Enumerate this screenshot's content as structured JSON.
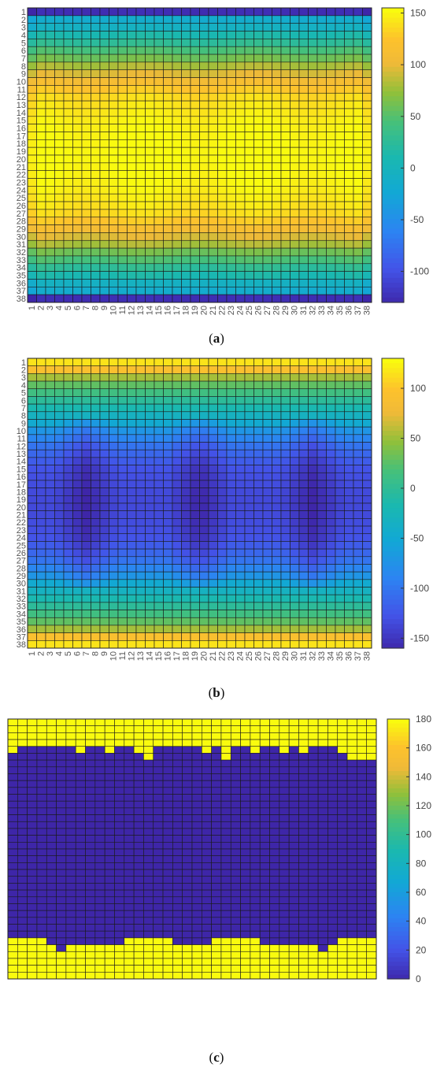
{
  "chart_data": [
    {
      "type": "heatmap",
      "panel_label": "a",
      "rows": 38,
      "cols": 38,
      "show_x_ticks": true,
      "show_y_ticks": true,
      "colorbar": {
        "ticks": [
          150,
          100,
          50,
          0,
          -50,
          -100
        ],
        "range": [
          -130,
          155
        ]
      },
      "profile": {
        "edge": [
          -125,
          -15,
          -5,
          10,
          25,
          45,
          60,
          80,
          95,
          110,
          125,
          135,
          140,
          143,
          146,
          148,
          150,
          151,
          152
        ],
        "center_boost": 8
      }
    },
    {
      "type": "heatmap",
      "panel_label": "b",
      "rows": 38,
      "cols": 38,
      "show_x_ticks": true,
      "show_y_ticks": true,
      "colorbar": {
        "ticks": [
          100,
          50,
          0,
          -50,
          -100,
          -150
        ],
        "range": [
          -160,
          130
        ]
      },
      "profile": {
        "edge": [
          118,
          95,
          55,
          30,
          15,
          0,
          -15,
          -30,
          -45,
          -70,
          -85,
          -100,
          -110,
          -118,
          -125,
          -128,
          -130,
          -132,
          -133
        ],
        "dip": -28
      }
    },
    {
      "type": "heatmap",
      "panel_label": "c",
      "rows": 38,
      "cols": 38,
      "show_x_ticks": false,
      "show_y_ticks": false,
      "colorbar": {
        "ticks": [
          180,
          160,
          140,
          120,
          100,
          80,
          60,
          40,
          20,
          0
        ],
        "range": [
          0,
          180
        ]
      },
      "values": {
        "high": 180,
        "low": 0
      },
      "top_band_rows": [
        5,
        4,
        4,
        4,
        4,
        4,
        4,
        5,
        4,
        4,
        5,
        4,
        4,
        5,
        6,
        4,
        4,
        4,
        4,
        4,
        5,
        4,
        6,
        4,
        4,
        5,
        4,
        4,
        5,
        4,
        5,
        4,
        4,
        4,
        5,
        6,
        6,
        6
      ],
      "bottom_band_rows": [
        6,
        6,
        6,
        6,
        5,
        4,
        5,
        5,
        5,
        5,
        5,
        5,
        6,
        6,
        6,
        6,
        6,
        5,
        5,
        5,
        5,
        6,
        6,
        6,
        6,
        6,
        5,
        5,
        5,
        5,
        5,
        5,
        4,
        5,
        6,
        6,
        6,
        6
      ]
    }
  ]
}
